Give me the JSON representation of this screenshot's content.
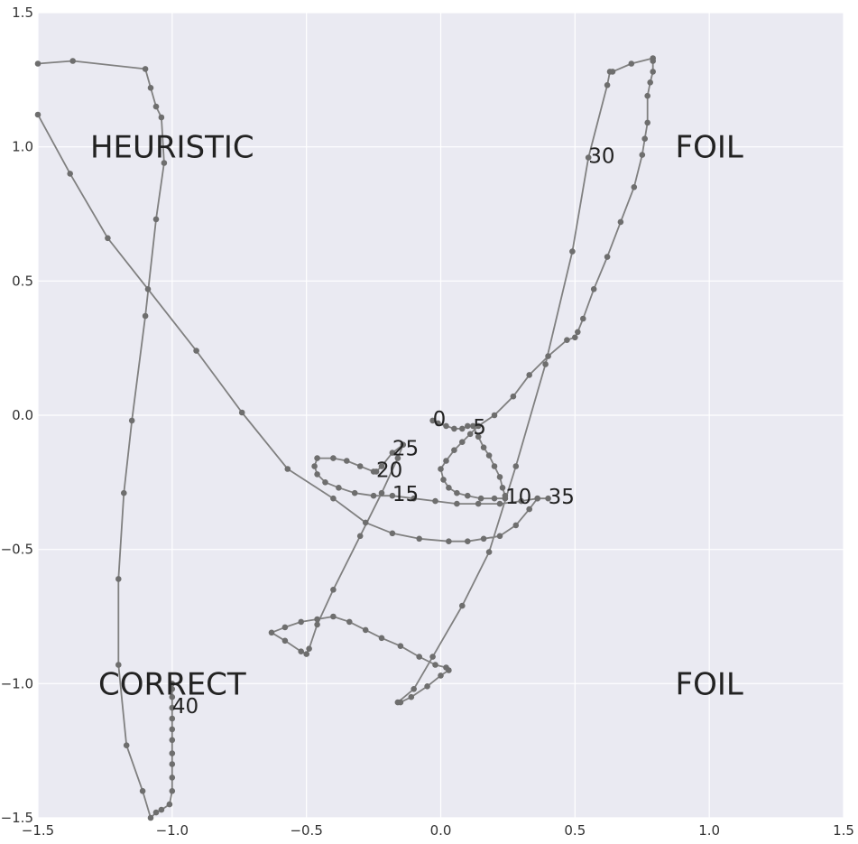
{
  "chart_data": {
    "type": "line",
    "title": "",
    "xlabel": "",
    "ylabel": "",
    "xlim": [
      -1.5,
      1.5
    ],
    "ylim": [
      -1.5,
      1.5
    ],
    "grid": true,
    "background": "#eaeaf2",
    "grid_color": "#ffffff",
    "series_color": "#808080",
    "marker_color": "#6e6e6e",
    "x_ticks": [
      -1.5,
      -1.0,
      -0.5,
      0.0,
      0.5,
      1.0,
      1.5
    ],
    "x_tick_labels": [
      "−1.5",
      "−1.0",
      "−0.5",
      "0.0",
      "0.5",
      "1.0",
      "1.5"
    ],
    "y_ticks": [
      -1.5,
      -1.0,
      -0.5,
      0.0,
      0.5,
      1.0,
      1.5
    ],
    "y_tick_labels": [
      "−1.5",
      "−1.0",
      "−0.5",
      "0.0",
      "0.5",
      "1.0",
      "1.5"
    ],
    "regions": [
      {
        "text": "HEURISTIC",
        "x": -1.0,
        "y": 1.0
      },
      {
        "text": "FOIL",
        "x": 1.0,
        "y": 1.0
      },
      {
        "text": "CORRECT",
        "x": -1.0,
        "y": -1.0
      },
      {
        "text": "FOIL",
        "x": 1.0,
        "y": -1.0
      }
    ],
    "step_labels": [
      {
        "text": "0",
        "x": -0.03,
        "y": -0.02
      },
      {
        "text": "5",
        "x": 0.12,
        "y": -0.05
      },
      {
        "text": "10",
        "x": 0.24,
        "y": -0.31
      },
      {
        "text": "15",
        "x": -0.18,
        "y": -0.3
      },
      {
        "text": "20",
        "x": -0.24,
        "y": -0.21
      },
      {
        "text": "25",
        "x": -0.18,
        "y": -0.13
      },
      {
        "text": "30",
        "x": 0.55,
        "y": 0.96
      },
      {
        "text": "35",
        "x": 0.4,
        "y": -0.31
      },
      {
        "text": "40",
        "x": -1.0,
        "y": -1.09
      }
    ],
    "series": [
      {
        "points": [
          [
            -0.03,
            -0.02
          ],
          [
            -0.01,
            -0.03
          ],
          [
            0.02,
            -0.04
          ],
          [
            0.05,
            -0.05
          ],
          [
            0.08,
            -0.05
          ],
          [
            0.1,
            -0.04
          ],
          [
            0.12,
            -0.04
          ],
          [
            0.14,
            -0.08
          ],
          [
            0.16,
            -0.12
          ],
          [
            0.18,
            -0.15
          ],
          [
            0.2,
            -0.19
          ],
          [
            0.22,
            -0.23
          ],
          [
            0.23,
            -0.27
          ],
          [
            0.24,
            -0.3
          ],
          [
            0.24,
            -0.31
          ],
          [
            0.2,
            -0.31
          ],
          [
            0.15,
            -0.31
          ],
          [
            0.1,
            -0.3
          ],
          [
            0.06,
            -0.29
          ],
          [
            0.03,
            -0.27
          ],
          [
            0.01,
            -0.24
          ],
          [
            0.0,
            -0.2
          ],
          [
            0.02,
            -0.17
          ],
          [
            0.05,
            -0.13
          ],
          [
            0.08,
            -0.1
          ],
          [
            0.11,
            -0.07
          ],
          [
            0.14,
            -0.04
          ],
          [
            0.2,
            0.0
          ],
          [
            0.27,
            0.07
          ],
          [
            0.33,
            0.15
          ],
          [
            0.4,
            0.22
          ],
          [
            0.47,
            0.28
          ],
          [
            0.5,
            0.29
          ],
          [
            0.51,
            0.31
          ],
          [
            0.53,
            0.36
          ],
          [
            0.57,
            0.47
          ],
          [
            0.62,
            0.59
          ],
          [
            0.67,
            0.72
          ],
          [
            0.72,
            0.85
          ],
          [
            0.75,
            0.97
          ],
          [
            0.76,
            1.03
          ],
          [
            0.77,
            1.09
          ],
          [
            0.77,
            1.19
          ],
          [
            0.78,
            1.24
          ],
          [
            0.79,
            1.28
          ],
          [
            0.79,
            1.32
          ],
          [
            0.79,
            1.33
          ],
          [
            0.71,
            1.31
          ],
          [
            0.64,
            1.28
          ],
          [
            0.63,
            1.28
          ],
          [
            0.62,
            1.23
          ],
          [
            0.55,
            0.96
          ],
          [
            0.49,
            0.61
          ],
          [
            0.39,
            0.19
          ],
          [
            0.28,
            -0.19
          ],
          [
            0.18,
            -0.51
          ],
          [
            0.08,
            -0.71
          ],
          [
            -0.03,
            -0.9
          ],
          [
            -0.1,
            -1.02
          ],
          [
            -0.16,
            -1.07
          ],
          [
            -0.15,
            -1.07
          ],
          [
            -0.11,
            -1.05
          ],
          [
            -0.05,
            -1.01
          ],
          [
            0.0,
            -0.97
          ],
          [
            0.03,
            -0.95
          ],
          [
            0.02,
            -0.94
          ],
          [
            -0.02,
            -0.93
          ],
          [
            -0.08,
            -0.9
          ],
          [
            -0.15,
            -0.86
          ],
          [
            -0.22,
            -0.83
          ],
          [
            -0.28,
            -0.8
          ],
          [
            -0.34,
            -0.77
          ],
          [
            -0.4,
            -0.75
          ],
          [
            -0.46,
            -0.76
          ],
          [
            -0.52,
            -0.77
          ],
          [
            -0.58,
            -0.79
          ],
          [
            -0.63,
            -0.81
          ],
          [
            -0.58,
            -0.84
          ],
          [
            -0.52,
            -0.88
          ],
          [
            -0.5,
            -0.89
          ],
          [
            -0.49,
            -0.87
          ],
          [
            -0.46,
            -0.78
          ],
          [
            -0.4,
            -0.65
          ],
          [
            -0.3,
            -0.45
          ],
          [
            -0.22,
            -0.29
          ],
          [
            -0.16,
            -0.16
          ],
          [
            -0.14,
            -0.11
          ],
          [
            -0.18,
            -0.14
          ],
          [
            -0.22,
            -0.19
          ],
          [
            -0.24,
            -0.21
          ],
          [
            -0.25,
            -0.21
          ],
          [
            -0.3,
            -0.19
          ],
          [
            -0.35,
            -0.17
          ],
          [
            -0.4,
            -0.16
          ],
          [
            -0.46,
            -0.16
          ],
          [
            -0.47,
            -0.19
          ],
          [
            -0.46,
            -0.22
          ],
          [
            -0.43,
            -0.25
          ],
          [
            -0.38,
            -0.27
          ],
          [
            -0.32,
            -0.29
          ],
          [
            -0.25,
            -0.3
          ],
          [
            -0.18,
            -0.3
          ],
          [
            -0.1,
            -0.31
          ],
          [
            -0.02,
            -0.32
          ],
          [
            0.06,
            -0.33
          ],
          [
            0.14,
            -0.33
          ],
          [
            0.22,
            -0.33
          ],
          [
            0.3,
            -0.32
          ],
          [
            0.36,
            -0.31
          ],
          [
            0.4,
            -0.31
          ],
          [
            0.36,
            -0.31
          ],
          [
            0.33,
            -0.35
          ],
          [
            0.28,
            -0.41
          ],
          [
            0.22,
            -0.45
          ],
          [
            0.16,
            -0.46
          ],
          [
            0.1,
            -0.47
          ],
          [
            0.03,
            -0.47
          ],
          [
            -0.08,
            -0.46
          ],
          [
            -0.18,
            -0.44
          ],
          [
            -0.28,
            -0.4
          ],
          [
            -0.4,
            -0.31
          ],
          [
            -0.57,
            -0.2
          ],
          [
            -0.74,
            0.01
          ],
          [
            -0.91,
            0.24
          ],
          [
            -1.09,
            0.47
          ],
          [
            -1.24,
            0.66
          ],
          [
            -1.38,
            0.9
          ],
          [
            -1.5,
            1.12
          ]
        ]
      },
      {
        "points": [
          [
            -1.5,
            1.31
          ],
          [
            -1.37,
            1.32
          ],
          [
            -1.1,
            1.29
          ],
          [
            -1.08,
            1.22
          ],
          [
            -1.06,
            1.15
          ],
          [
            -1.04,
            1.11
          ],
          [
            -1.03,
            0.94
          ],
          [
            -1.06,
            0.73
          ],
          [
            -1.1,
            0.37
          ],
          [
            -1.15,
            -0.02
          ],
          [
            -1.18,
            -0.29
          ],
          [
            -1.2,
            -0.61
          ],
          [
            -1.2,
            -0.93
          ],
          [
            -1.17,
            -1.23
          ],
          [
            -1.11,
            -1.4
          ],
          [
            -1.08,
            -1.5
          ],
          [
            -1.06,
            -1.48
          ],
          [
            -1.04,
            -1.47
          ],
          [
            -1.01,
            -1.45
          ],
          [
            -1.0,
            -1.4
          ],
          [
            -1.0,
            -1.35
          ],
          [
            -1.0,
            -1.3
          ],
          [
            -1.0,
            -1.26
          ],
          [
            -1.0,
            -1.21
          ],
          [
            -1.0,
            -1.17
          ],
          [
            -1.0,
            -1.13
          ],
          [
            -1.0,
            -1.09
          ],
          [
            -1.0,
            -1.05
          ],
          [
            -1.0,
            -1.02
          ],
          [
            -1.0,
            -1.0
          ]
        ]
      }
    ]
  }
}
